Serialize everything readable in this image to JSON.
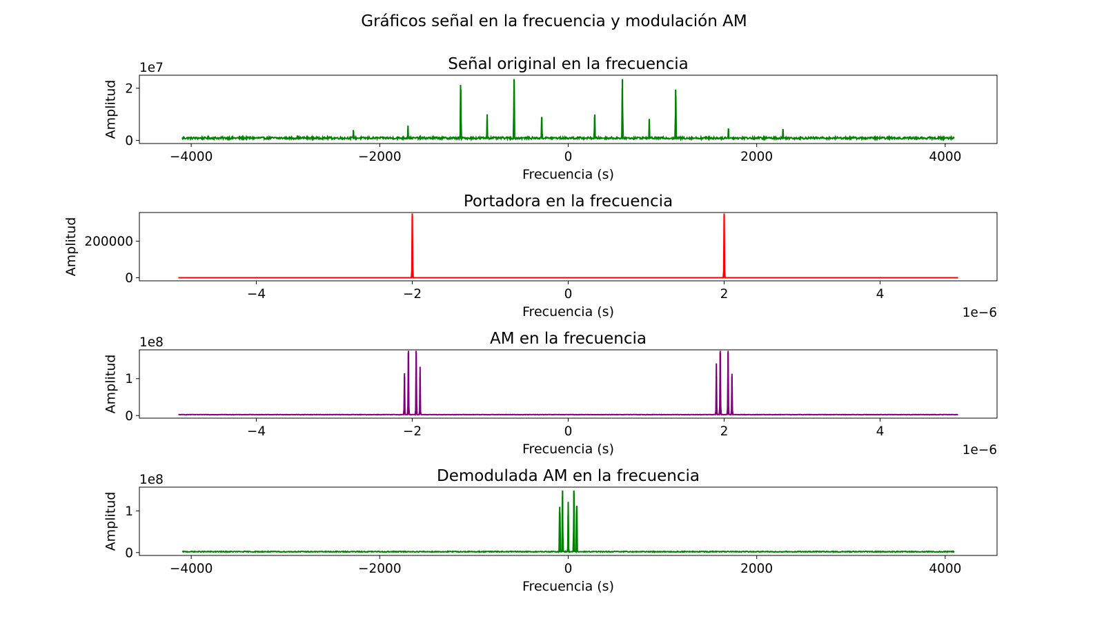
{
  "figure": {
    "suptitle": "Gráficos señal en la frecuencia y modulación AM"
  },
  "chart_data": [
    {
      "type": "line",
      "title": "Señal original en la frecuencia",
      "xlabel": "Frecuencia (s)",
      "ylabel": "Amplitud",
      "y_offset_text": "1e7",
      "x_offset_text": "",
      "xlim": [
        -4550,
        4550
      ],
      "ylim": [
        -0.12,
        2.5
      ],
      "xticks": [
        -4000,
        -2000,
        0,
        2000,
        4000
      ],
      "xtick_labels": [
        "−4000",
        "−2000",
        "0",
        "2000",
        "4000"
      ],
      "yticks": [
        0,
        2
      ],
      "ytick_labels": [
        "0",
        "2"
      ],
      "color": "#008000",
      "x_range": [
        -4096,
        4096
      ],
      "baseline": 0.05,
      "noise": 0.08,
      "peaks": [
        {
          "x": 575,
          "height": 2.35
        },
        {
          "x": -575,
          "height": 2.35
        },
        {
          "x": 1140,
          "height": 1.95
        },
        {
          "x": -1140,
          "height": 1.95
        },
        {
          "x": 1700,
          "height": 0.45
        },
        {
          "x": -1700,
          "height": 0.45
        },
        {
          "x": 2280,
          "height": 0.4
        },
        {
          "x": -2280,
          "height": 0.4
        },
        {
          "x": 280,
          "height": 0.9
        },
        {
          "x": -280,
          "height": 0.9
        },
        {
          "x": 860,
          "height": 0.8
        },
        {
          "x": -860,
          "height": 0.8
        }
      ]
    },
    {
      "type": "line",
      "title": "Portadora en la frecuencia",
      "xlabel": "Frecuencia (s)",
      "ylabel": "Amplitud",
      "y_offset_text": "",
      "x_offset_text": "1e−6",
      "xlim": [
        -5.5,
        5.5
      ],
      "ylim": [
        -17000,
        357000
      ],
      "xticks": [
        -4,
        -2,
        0,
        2,
        4
      ],
      "xtick_labels": [
        "−4",
        "−2",
        "0",
        "2",
        "4"
      ],
      "yticks": [
        0,
        200000
      ],
      "ytick_labels": [
        "0",
        "200000"
      ],
      "color": "#ff0000",
      "x_range": [
        -5,
        5
      ],
      "baseline": 0,
      "noise": 0,
      "peaks": [
        {
          "x": -2,
          "height": 340000
        },
        {
          "x": 2,
          "height": 340000
        }
      ]
    },
    {
      "type": "line",
      "title": "AM en la frecuencia",
      "xlabel": "Frecuencia (s)",
      "ylabel": "Amplitud",
      "y_offset_text": "1e8",
      "x_offset_text": "1e−6",
      "xlim": [
        -5.5,
        5.5
      ],
      "ylim": [
        -0.07,
        1.78
      ],
      "xticks": [
        -4,
        -2,
        0,
        2,
        4
      ],
      "xtick_labels": [
        "−4",
        "−2",
        "0",
        "2",
        "4"
      ],
      "yticks": [
        0,
        1
      ],
      "ytick_labels": [
        "0",
        "1"
      ],
      "color": "#800080",
      "x_range": [
        -5,
        5
      ],
      "baseline": 0.02,
      "noise": 0.01,
      "peaks": [
        {
          "x": -2.05,
          "height": 1.7
        },
        {
          "x": -1.95,
          "height": 1.7
        },
        {
          "x": 1.95,
          "height": 1.7
        },
        {
          "x": 2.05,
          "height": 1.7
        },
        {
          "x": -2.1,
          "height": 1.05
        },
        {
          "x": -1.9,
          "height": 1.05
        },
        {
          "x": 1.9,
          "height": 1.05
        },
        {
          "x": 2.1,
          "height": 1.05
        }
      ]
    },
    {
      "type": "line",
      "title": "Demodulada AM en la frecuencia",
      "xlabel": "Frecuencia (s)",
      "ylabel": "Amplitud",
      "y_offset_text": "1e8",
      "x_offset_text": "",
      "xlim": [
        -4550,
        4550
      ],
      "ylim": [
        -0.07,
        1.57
      ],
      "xticks": [
        -4000,
        -2000,
        0,
        2000,
        4000
      ],
      "xtick_labels": [
        "−4000",
        "−2000",
        "0",
        "2000",
        "4000"
      ],
      "yticks": [
        0,
        1
      ],
      "ytick_labels": [
        "0",
        "1"
      ],
      "color": "#008000",
      "x_range": [
        -4096,
        4096
      ],
      "baseline": 0.01,
      "noise": 0.02,
      "peaks": [
        {
          "x": -60,
          "height": 1.49
        },
        {
          "x": 60,
          "height": 1.49
        },
        {
          "x": -90,
          "height": 1.1
        },
        {
          "x": 90,
          "height": 1.1
        },
        {
          "x": 0,
          "height": 0.9
        }
      ]
    }
  ]
}
